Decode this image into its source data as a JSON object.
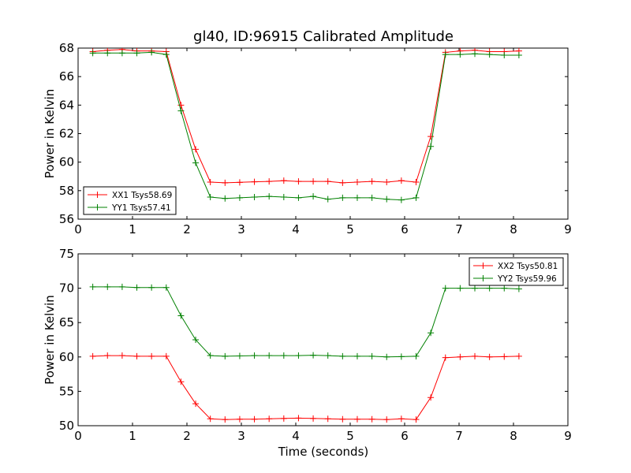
{
  "figure": {
    "title": "gl40, ID:96915 Calibrated Amplitude",
    "xlabel": "Time (seconds)"
  },
  "chart_data": [
    {
      "type": "line",
      "title": "gl40, ID:96915 Calibrated Amplitude",
      "xlabel": "",
      "ylabel": "Power in Kelvin",
      "xlim": [
        0,
        9
      ],
      "ylim": [
        56,
        68
      ],
      "xticks": [
        0,
        1,
        2,
        3,
        4,
        5,
        6,
        7,
        8,
        9
      ],
      "yticks": [
        56,
        58,
        60,
        62,
        64,
        66,
        68
      ],
      "grid": false,
      "legend_position": "lower-left",
      "x": [
        0.27,
        0.54,
        0.81,
        1.08,
        1.35,
        1.62,
        1.89,
        2.16,
        2.43,
        2.7,
        2.97,
        3.24,
        3.51,
        3.78,
        4.05,
        4.32,
        4.59,
        4.86,
        5.13,
        5.4,
        5.67,
        5.94,
        6.21,
        6.48,
        6.75,
        7.02,
        7.29,
        7.56,
        7.83,
        8.1
      ],
      "series": [
        {
          "name": "XX1 Tsys58.69",
          "color": "#ff0000",
          "values": [
            67.75,
            67.85,
            67.9,
            67.8,
            67.8,
            67.75,
            64.0,
            60.9,
            58.6,
            58.55,
            58.58,
            58.62,
            58.65,
            58.7,
            58.65,
            58.65,
            58.65,
            58.55,
            58.6,
            58.65,
            58.6,
            58.7,
            58.6,
            61.8,
            67.7,
            67.8,
            67.85,
            67.75,
            67.75,
            67.8
          ]
        },
        {
          "name": "YY1 Tsys57.41",
          "color": "#008000",
          "values": [
            67.65,
            67.65,
            67.65,
            67.65,
            67.7,
            67.55,
            63.6,
            59.95,
            57.55,
            57.45,
            57.5,
            57.55,
            57.6,
            57.55,
            57.5,
            57.6,
            57.4,
            57.5,
            57.5,
            57.5,
            57.4,
            57.35,
            57.5,
            61.1,
            67.55,
            67.55,
            67.6,
            67.55,
            67.5,
            67.5
          ]
        }
      ]
    },
    {
      "type": "line",
      "title": "",
      "xlabel": "Time (seconds)",
      "ylabel": "Power in Kelvin",
      "xlim": [
        0,
        9
      ],
      "ylim": [
        50,
        75
      ],
      "xticks": [
        0,
        1,
        2,
        3,
        4,
        5,
        6,
        7,
        8,
        9
      ],
      "yticks": [
        50,
        55,
        60,
        65,
        70,
        75
      ],
      "grid": false,
      "legend_position": "upper-right",
      "x": [
        0.27,
        0.54,
        0.81,
        1.08,
        1.35,
        1.62,
        1.89,
        2.16,
        2.43,
        2.7,
        2.97,
        3.24,
        3.51,
        3.78,
        4.05,
        4.32,
        4.59,
        4.86,
        5.13,
        5.4,
        5.67,
        5.94,
        6.21,
        6.48,
        6.75,
        7.02,
        7.29,
        7.56,
        7.83,
        8.1
      ],
      "series": [
        {
          "name": "XX2 Tsys50.81",
          "color": "#ff0000",
          "values": [
            60.1,
            60.2,
            60.2,
            60.1,
            60.1,
            60.1,
            56.4,
            53.2,
            51.0,
            50.9,
            50.95,
            50.95,
            51.0,
            51.05,
            51.1,
            51.05,
            51.0,
            50.95,
            50.95,
            50.95,
            50.9,
            51.0,
            50.9,
            54.1,
            59.9,
            60.0,
            60.1,
            60.0,
            60.05,
            60.1
          ]
        },
        {
          "name": "YY2 Tsys59.96",
          "color": "#008000",
          "values": [
            70.2,
            70.2,
            70.2,
            70.1,
            70.1,
            70.1,
            66.0,
            62.5,
            60.2,
            60.1,
            60.15,
            60.2,
            60.2,
            60.2,
            60.2,
            60.25,
            60.2,
            60.1,
            60.1,
            60.1,
            60.0,
            60.05,
            60.1,
            63.5,
            70.0,
            70.0,
            70.0,
            70.0,
            70.0,
            69.9
          ]
        }
      ]
    }
  ]
}
